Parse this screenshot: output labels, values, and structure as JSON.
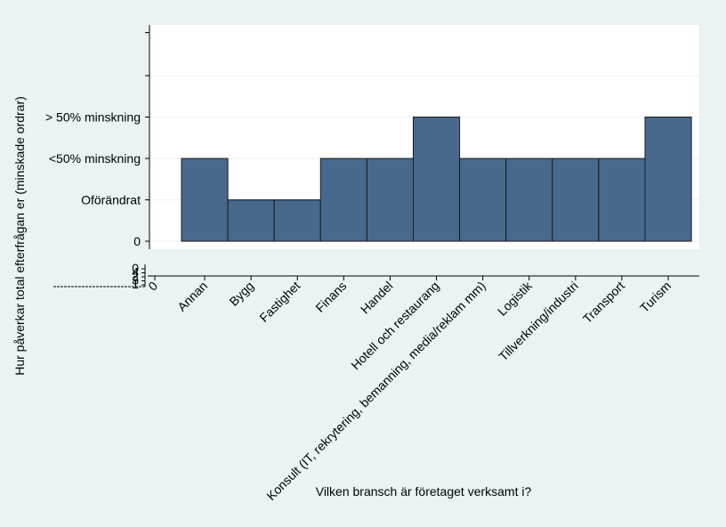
{
  "chart_data": {
    "type": "bar",
    "xlabel": "Vilken bransch är företaget verksamt i?",
    "ylabel": "Hur påverkar total efterfrågan er (minskade ordrar)",
    "categories": [
      "Annan",
      "Bygg",
      "Fastighet",
      "Finans",
      "Handel",
      "Hotell och restaurang",
      "Konsult (IT, rekrytering, bemanning, media/reklam mm)",
      "Logistik",
      "Tillverkning/industri",
      "Transport",
      "Turism"
    ],
    "values": [
      2,
      1,
      1,
      2,
      2,
      3,
      2,
      2,
      2,
      2,
      3
    ],
    "y_ticks": [
      {
        "value": 0,
        "label": "0"
      },
      {
        "value": 1,
        "label": "Oförändrat"
      },
      {
        "value": 2,
        "label": "<50% minskning"
      },
      {
        "value": 3,
        "label": "> 50% minskning"
      }
    ],
    "ylim": [
      0,
      5
    ],
    "x_zero_label": "0",
    "lower_axis_stub_labels": [
      "0",
      "4",
      "2",
      "3",
      "1"
    ],
    "grid": true,
    "bar_color": "#48698c",
    "legend": "none"
  }
}
